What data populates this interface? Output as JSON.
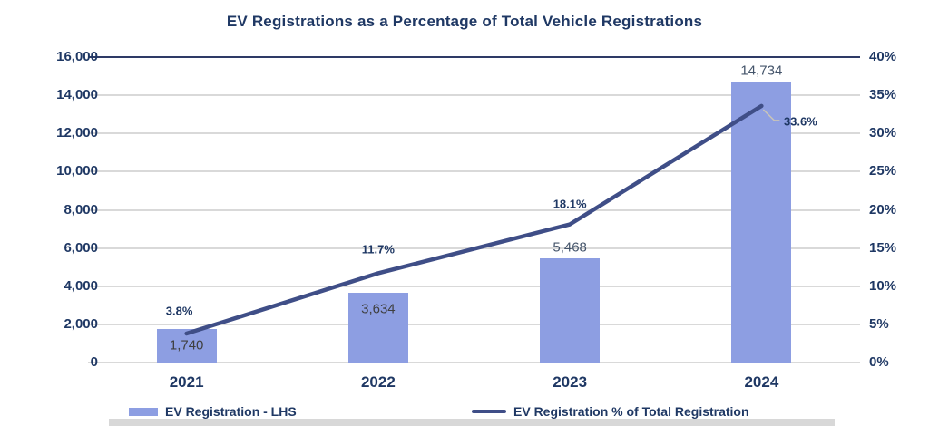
{
  "title": "EV Registrations as a Percentage of Total Vehicle Registrations",
  "chart_data": {
    "type": "bar",
    "subtype": "combo-bar-line-dual-axis",
    "title": "EV Registrations as a Percentage of Total Vehicle Registrations",
    "categories": [
      "2021",
      "2022",
      "2023",
      "2024"
    ],
    "series": [
      {
        "name": "EV Registration - LHS",
        "type": "bar",
        "axis": "left",
        "values": [
          1740,
          3634,
          5468,
          14734
        ],
        "data_labels": [
          "1,740",
          "3,634",
          "5,468",
          "14,734"
        ],
        "label_inside_bar": [
          true,
          true,
          false,
          false
        ],
        "color": "#8D9EE2"
      },
      {
        "name": "EV Registration % of Total Registration",
        "type": "line",
        "axis": "right",
        "values": [
          3.8,
          11.7,
          18.1,
          33.6
        ],
        "data_labels": [
          "3.8%",
          "11.7%",
          "18.1%",
          "33.6%"
        ],
        "color": "#3F4E87"
      }
    ],
    "left_axis": {
      "min": 0,
      "max": 16000,
      "step": 2000,
      "tick_labels": [
        "16,000",
        "14,000",
        "12,000",
        "10,000",
        "8,000",
        "6,000",
        "4,000",
        "2,000",
        "0"
      ]
    },
    "right_axis": {
      "min": 0,
      "max": 40,
      "step": 5,
      "tick_labels": [
        "40%",
        "35%",
        "30%",
        "25%",
        "20%",
        "15%",
        "10%",
        "5%",
        "0%"
      ]
    },
    "grid": true,
    "legend_position": "bottom"
  },
  "legend": {
    "bar_label": "EV Registration - LHS",
    "line_label": "EV Registration % of Total Registration"
  },
  "colors": {
    "title_text": "#1F3864",
    "axis_text": "#1F3864",
    "bar_fill": "#8D9EE2",
    "line_stroke": "#3F4E87",
    "gridline": "#D9D9D9",
    "top_border": "#2E3A66",
    "bar_label_text": "#3F3F3F",
    "leader_line": "#C9C4B8",
    "footer_band": "#D8D8D8"
  }
}
